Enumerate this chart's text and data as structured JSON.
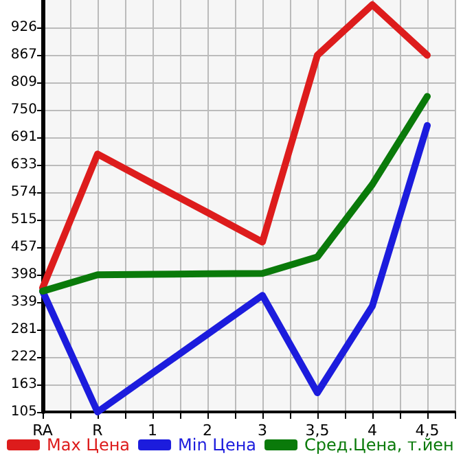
{
  "chart_data": {
    "type": "line",
    "categories": [
      "RA",
      "R",
      "1",
      "2",
      "3",
      "3,5",
      "4",
      "4,5"
    ],
    "series": [
      {
        "name": "Max Цена",
        "color": "#dd1c1c",
        "values": [
          370,
          656,
          593,
          531,
          468,
          867,
          975,
          867
        ]
      },
      {
        "name": "Min Цена",
        "color": "#1c1cdd",
        "values": [
          363,
          105,
          188,
          271,
          354,
          146,
          331,
          717
        ]
      },
      {
        "name": "Сред.Цена, т.йен",
        "color": "#0a7a0a",
        "values": [
          363,
          398,
          399,
          400,
          401,
          436,
          591,
          779
        ]
      }
    ],
    "ylim": [
      105,
      985
    ],
    "yticks": [
      105,
      163,
      222,
      281,
      339,
      398,
      457,
      515,
      574,
      633,
      691,
      750,
      809,
      867,
      926
    ],
    "grid": true,
    "legend": "bottom",
    "marker": "none",
    "line_style": "solid"
  }
}
